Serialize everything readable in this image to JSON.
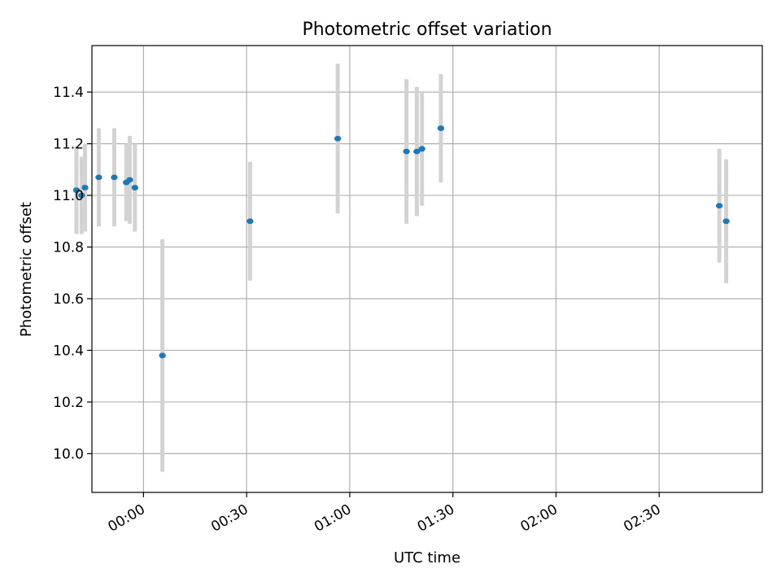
{
  "chart_data": {
    "type": "scatter",
    "title": "Photometric offset variation",
    "xlabel": "UTC time",
    "ylabel": "Photometric offset",
    "x_axis_type": "time",
    "xlim": [
      "-00:15",
      "03:00"
    ],
    "ylim": [
      9.85,
      11.58
    ],
    "grid": true,
    "x_ticks": [
      "00:00",
      "00:30",
      "01:00",
      "01:30",
      "02:00",
      "02:30"
    ],
    "y_ticks": [
      "10.0",
      "10.2",
      "10.4",
      "10.6",
      "10.8",
      "11.0",
      "11.2",
      "11.4"
    ],
    "series": [
      {
        "color": "#1f77b4",
        "errorbar_color": "#d3d3d3",
        "points": [
          {
            "time": "-00:19.5",
            "y": 11.02,
            "err": 0.17
          },
          {
            "time": "-00:18.0",
            "y": 11.0,
            "err": 0.15
          },
          {
            "time": "-00:17.0",
            "y": 11.03,
            "err": 0.17
          },
          {
            "time": "-00:13.0",
            "y": 11.07,
            "err": 0.19
          },
          {
            "time": "-00:08.5",
            "y": 11.07,
            "err": 0.19
          },
          {
            "time": "-00:05.0",
            "y": 11.05,
            "err": 0.15
          },
          {
            "time": "-00:04.0",
            "y": 11.06,
            "err": 0.17
          },
          {
            "time": "-00:02.5",
            "y": 11.03,
            "err": 0.17
          },
          {
            "time": "00:05.5",
            "y": 10.38,
            "err": 0.45
          },
          {
            "time": "00:31.0",
            "y": 10.9,
            "err": 0.23
          },
          {
            "time": "00:56.5",
            "y": 11.22,
            "err": 0.29
          },
          {
            "time": "01:16.5",
            "y": 11.17,
            "err": 0.28
          },
          {
            "time": "01:19.5",
            "y": 11.17,
            "err": 0.25
          },
          {
            "time": "01:21.0",
            "y": 11.18,
            "err": 0.22
          },
          {
            "time": "01:26.5",
            "y": 11.26,
            "err": 0.21
          },
          {
            "time": "02:47.5",
            "y": 10.96,
            "err": 0.22
          },
          {
            "time": "02:49.5",
            "y": 10.9,
            "err": 0.24
          }
        ]
      }
    ]
  }
}
